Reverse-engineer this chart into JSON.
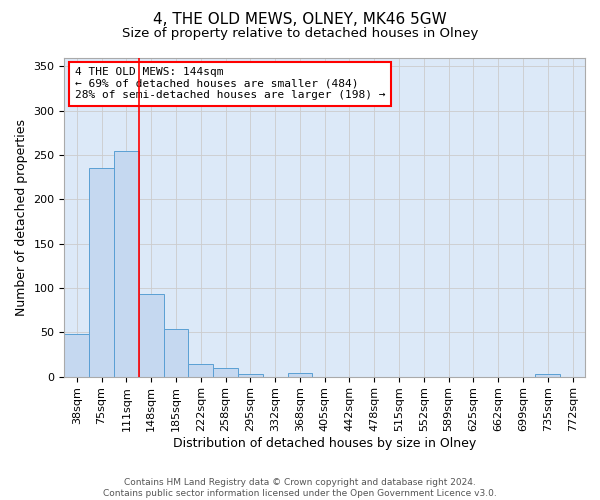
{
  "title": "4, THE OLD MEWS, OLNEY, MK46 5GW",
  "subtitle": "Size of property relative to detached houses in Olney",
  "xlabel": "Distribution of detached houses by size in Olney",
  "ylabel": "Number of detached properties",
  "footer_line1": "Contains HM Land Registry data © Crown copyright and database right 2024.",
  "footer_line2": "Contains public sector information licensed under the Open Government Licence v3.0.",
  "categories": [
    "38sqm",
    "75sqm",
    "111sqm",
    "148sqm",
    "185sqm",
    "222sqm",
    "258sqm",
    "295sqm",
    "332sqm",
    "368sqm",
    "405sqm",
    "442sqm",
    "478sqm",
    "515sqm",
    "552sqm",
    "589sqm",
    "625sqm",
    "662sqm",
    "699sqm",
    "735sqm",
    "772sqm"
  ],
  "values": [
    48,
    235,
    255,
    93,
    54,
    14,
    10,
    3,
    0,
    4,
    0,
    0,
    0,
    0,
    0,
    0,
    0,
    0,
    0,
    3,
    0
  ],
  "bar_color": "#c5d8f0",
  "bar_edge_color": "#5a9fd4",
  "ylim": [
    0,
    360
  ],
  "yticks": [
    0,
    50,
    100,
    150,
    200,
    250,
    300,
    350
  ],
  "annotation_text": "4 THE OLD MEWS: 144sqm\n← 69% of detached houses are smaller (484)\n28% of semi-detached houses are larger (198) →",
  "annotation_box_color": "white",
  "annotation_box_edge_color": "red",
  "red_line_x": 2.5,
  "grid_color": "#cccccc",
  "background_color": "#dce9f8",
  "title_fontsize": 11,
  "subtitle_fontsize": 9.5,
  "axis_fontsize": 9,
  "tick_fontsize": 8,
  "annotation_fontsize": 8
}
